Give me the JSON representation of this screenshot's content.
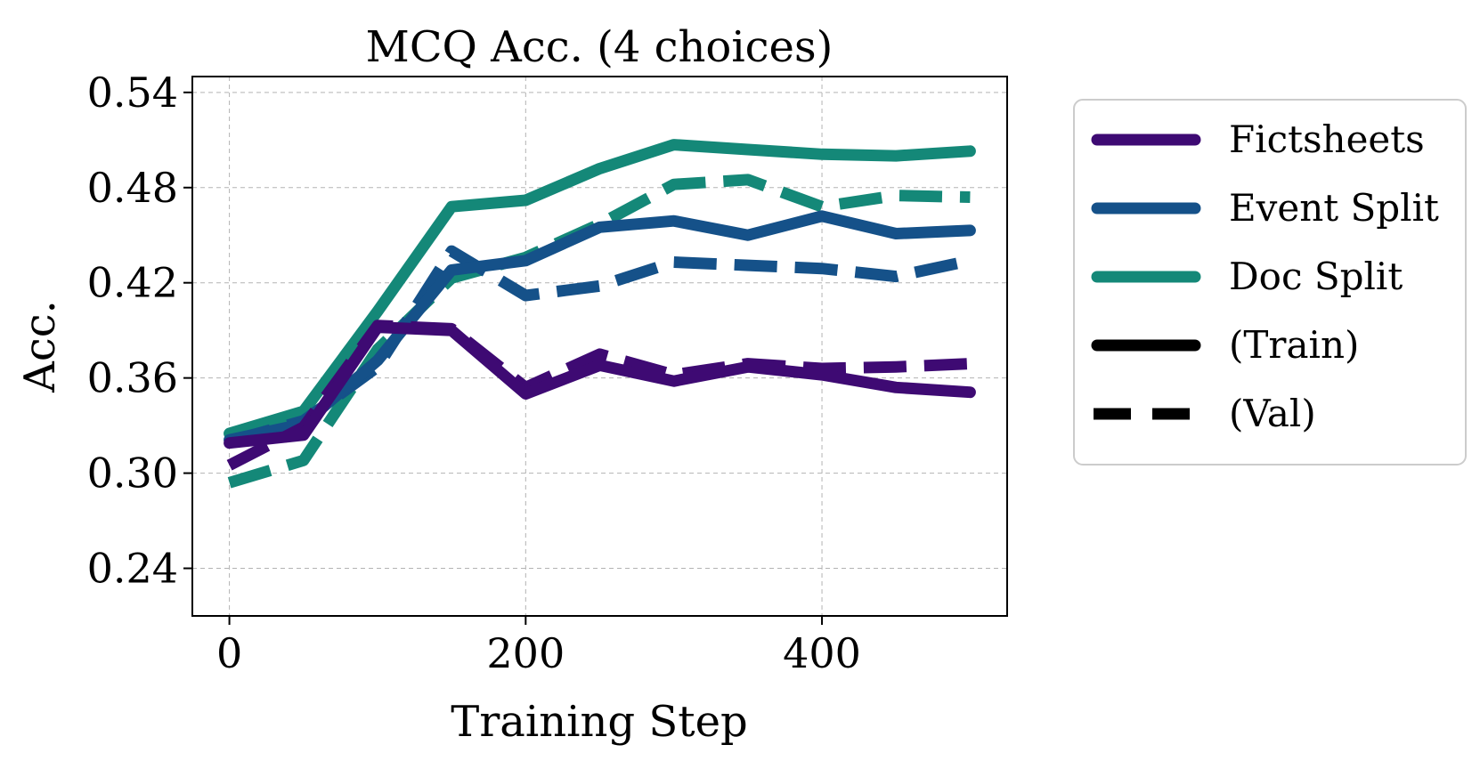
{
  "chart_data": {
    "type": "line",
    "title": "MCQ Acc. (4 choices)",
    "xlabel": "Training Step",
    "ylabel": "Acc.",
    "xlim": [
      -25,
      525
    ],
    "ylim": [
      0.21,
      0.55
    ],
    "xticks": [
      0,
      200,
      400
    ],
    "xtick_labels": [
      "0",
      "200",
      "400"
    ],
    "yticks": [
      0.24,
      0.3,
      0.36,
      0.42,
      0.48,
      0.54
    ],
    "ytick_labels": [
      "0.24",
      "0.30",
      "0.36",
      "0.42",
      "0.48",
      "0.54"
    ],
    "grid": true,
    "legend_position": "outside-right",
    "x": [
      0,
      50,
      100,
      150,
      200,
      250,
      300,
      350,
      400,
      450,
      500
    ],
    "series": [
      {
        "name": "Fictsheets (Train)",
        "group": "Fictsheets",
        "style": "solid",
        "color": "#3e0a73",
        "values": [
          0.319,
          0.324,
          0.392,
          0.39,
          0.35,
          0.368,
          0.358,
          0.367,
          0.362,
          0.354,
          0.351
        ]
      },
      {
        "name": "Fictsheets (Val)",
        "group": "Fictsheets",
        "style": "dashed",
        "color": "#3e0a73",
        "values": [
          0.305,
          0.329,
          0.393,
          0.391,
          0.354,
          0.375,
          0.362,
          0.369,
          0.366,
          0.367,
          0.369
        ]
      },
      {
        "name": "Event Split (Train)",
        "group": "Event Split",
        "style": "solid",
        "color": "#155189",
        "values": [
          0.321,
          0.331,
          0.371,
          0.428,
          0.434,
          0.455,
          0.459,
          0.45,
          0.462,
          0.451,
          0.453
        ]
      },
      {
        "name": "Event Split (Val)",
        "group": "Event Split",
        "style": "dashed",
        "color": "#155189",
        "values": [
          0.32,
          0.333,
          0.367,
          0.44,
          0.412,
          0.418,
          0.433,
          0.431,
          0.429,
          0.424,
          0.434
        ]
      },
      {
        "name": "Doc Split (Train)",
        "group": "Doc Split",
        "style": "solid",
        "color": "#148878",
        "values": [
          0.325,
          0.339,
          0.402,
          0.468,
          0.472,
          0.492,
          0.507,
          0.504,
          0.501,
          0.5,
          0.503
        ]
      },
      {
        "name": "Doc Split (Val)",
        "group": "Doc Split",
        "style": "dashed",
        "color": "#148878",
        "values": [
          0.294,
          0.308,
          0.378,
          0.423,
          0.436,
          0.457,
          0.482,
          0.485,
          0.468,
          0.475,
          0.474
        ]
      }
    ]
  },
  "legend": {
    "entries": [
      {
        "label": "Fictsheets",
        "style": "solid",
        "color": "#3e0a73"
      },
      {
        "label": "Event Split",
        "style": "solid",
        "color": "#155189"
      },
      {
        "label": "Doc Split",
        "style": "solid",
        "color": "#148878"
      },
      {
        "label": "(Train)",
        "style": "solid",
        "color": "#000000"
      },
      {
        "label": "(Val)",
        "style": "dashed",
        "color": "#000000"
      }
    ]
  }
}
